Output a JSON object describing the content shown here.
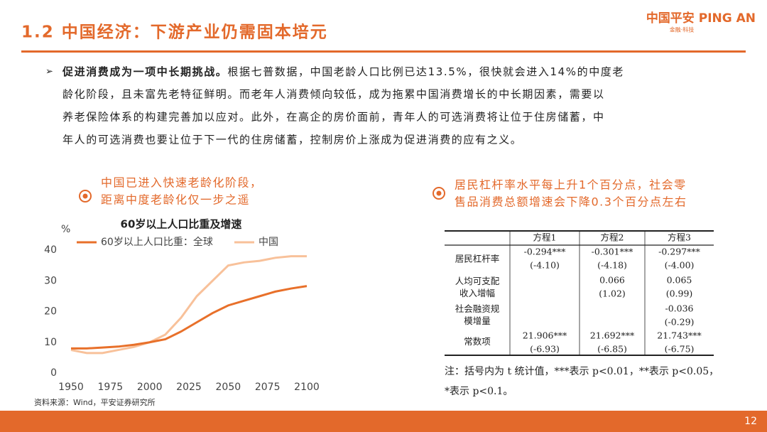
{
  "header": {
    "title": "1.2 中国经济：下游产业仍需固本培元",
    "logo": "中国平安 PING AN",
    "tagline": "金融·科技"
  },
  "paragraph": {
    "lead": "促进消费成为一项中长期挑战。",
    "lines": [
      "根据七普数据，中国老龄人口比例已达13.5%，很快就会进入14%的中度老",
      "龄化阶段，且未富先老特征鲜明。而老年人消费倾向较低，成为拖累中国消费增长的中长期因素，需要以",
      "养老保险体系的构建完善加以应对。此外，在高企的房价面前，青年人的可选消费将让位于住房储蓄，中",
      "年人的可选消费也要让位于下一代的住房储蓄，控制房价上涨成为促进消费的应有之义。"
    ]
  },
  "annotation_left": [
    "中国已进入快速老龄化阶段，",
    "距离中度老龄化仅一步之遥"
  ],
  "annotation_right": [
    "居民杠杆率水平每上升1个百分点，社会零",
    "售品消费总额增速会下降0.3个百分点左右"
  ],
  "chart_data": {
    "type": "line",
    "title": "60岁以上人口比重及增速",
    "ylabel": "%",
    "x": [
      1950,
      1960,
      1970,
      1980,
      1990,
      2000,
      2010,
      2020,
      2030,
      2040,
      2050,
      2060,
      2070,
      2080,
      2090,
      2100
    ],
    "series": [
      {
        "name": "60岁以上人口比重：全球",
        "color": "#e8702a",
        "values": [
          8,
          8,
          8.3,
          8.6,
          9.2,
          10,
          11,
          13.5,
          16.5,
          19.5,
          22,
          23.5,
          25,
          26.5,
          27.5,
          28.3
        ]
      },
      {
        "name": "中国",
        "color": "#f8c19a",
        "values": [
          7.5,
          6.5,
          6.5,
          7.5,
          8.5,
          10,
          12.5,
          18,
          25,
          30,
          35,
          36,
          36.5,
          37.5,
          38,
          38
        ]
      }
    ],
    "xlim": [
      1950,
      2100
    ],
    "xticks": [
      1950,
      1975,
      2000,
      2025,
      2050,
      2075,
      2100
    ],
    "ylim": [
      0,
      40
    ],
    "yticks": [
      0,
      10,
      20,
      30,
      40
    ]
  },
  "table": {
    "header": [
      "方程1",
      "方程2",
      "方程3"
    ],
    "rows": [
      {
        "label": [
          "居民杠杆率"
        ],
        "cells": [
          [
            "-0.294***",
            "(-4.10)"
          ],
          [
            "-0.301***",
            "(-4.18)"
          ],
          [
            "-0.297***",
            "(-4.00)"
          ]
        ]
      },
      {
        "label": [
          "人均可支配",
          "收入增幅"
        ],
        "cells": [
          null,
          [
            "0.066",
            "(1.02)"
          ],
          [
            "0.065",
            "(0.99)"
          ]
        ]
      },
      {
        "label": [
          "社会融资规",
          "模增量"
        ],
        "cells": [
          null,
          null,
          [
            "-0.036",
            "(-0.29)"
          ]
        ]
      },
      {
        "label": [
          "常数项"
        ],
        "cells": [
          [
            "21.906***",
            "(-6.93)"
          ],
          [
            "21.692***",
            "(-6.85)"
          ],
          [
            "21.743***",
            "(-6.75)"
          ]
        ]
      }
    ],
    "note": [
      "注：括号内为 t 统计值，***表示 p<0.01，**表示 p<0.05，",
      "*表示 p<0.1。"
    ]
  },
  "source": "资料来源：Wind，平安证券研究所",
  "page": "12"
}
